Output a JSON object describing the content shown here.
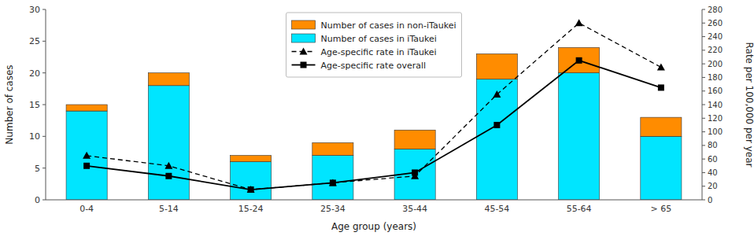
{
  "chart_data": {
    "type": "bar",
    "stacked": true,
    "xlabel": "Age group (years)",
    "ylabel": "Number of cases",
    "y2label": "Rate per 100,000 per year",
    "categories": [
      "0-4",
      "5-14",
      "15-24",
      "25-34",
      "35-44",
      "45-54",
      "55-64",
      "> 65"
    ],
    "series": [
      {
        "name": "Number of cases in iTaukei",
        "type": "bar",
        "color": "#00E5FF",
        "values": [
          14,
          18,
          6,
          7,
          8,
          19,
          20,
          10
        ]
      },
      {
        "name": "Number of cases in non-iTaukei",
        "type": "bar",
        "color": "#FF8C00",
        "values": [
          1,
          2,
          1,
          2,
          3,
          4,
          4,
          3
        ]
      },
      {
        "name": "Age-specific rate in iTaukei",
        "type": "line",
        "axis": "y2",
        "color": "#000000",
        "marker": "triangle",
        "line_style": "dashed",
        "values": [
          65,
          50,
          15,
          25,
          35,
          155,
          260,
          195
        ]
      },
      {
        "name": "Age-specific rate overall",
        "type": "line",
        "axis": "y2",
        "color": "#000000",
        "marker": "square",
        "line_style": "solid",
        "values": [
          50,
          35,
          15,
          25,
          40,
          110,
          205,
          165
        ]
      }
    ],
    "ylim": [
      0,
      30
    ],
    "yticks": [
      0,
      5,
      10,
      15,
      20,
      25,
      30
    ],
    "y2lim": [
      0,
      280
    ],
    "y2ticks": [
      0,
      20,
      40,
      60,
      80,
      100,
      120,
      140,
      160,
      180,
      200,
      220,
      240,
      260,
      280
    ],
    "grid": false,
    "legend": "upper center"
  }
}
